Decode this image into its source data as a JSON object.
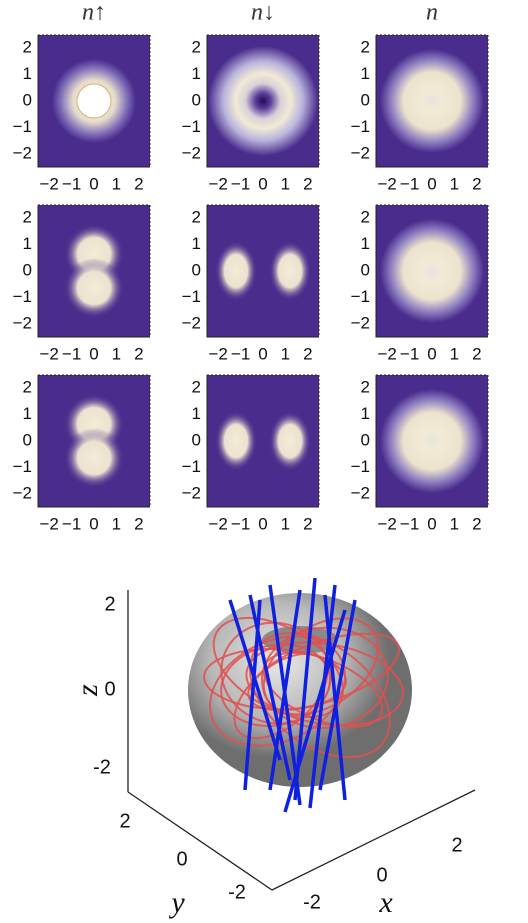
{
  "panels": {
    "column_titles": [
      "n↑",
      "n↓",
      "n"
    ],
    "xticks": [
      "−2",
      "−1",
      "0",
      "1",
      "2"
    ],
    "yticks": [
      "2",
      "1",
      "0",
      "−1",
      "−2"
    ]
  },
  "plot3d": {
    "z_label": "z",
    "x_label": "x",
    "y_label": "y",
    "zticks": [
      "2",
      "0",
      "-2"
    ],
    "yticks": [
      "2",
      "0",
      "-2"
    ],
    "xticks": [
      "-2",
      "0",
      "2"
    ]
  }
}
